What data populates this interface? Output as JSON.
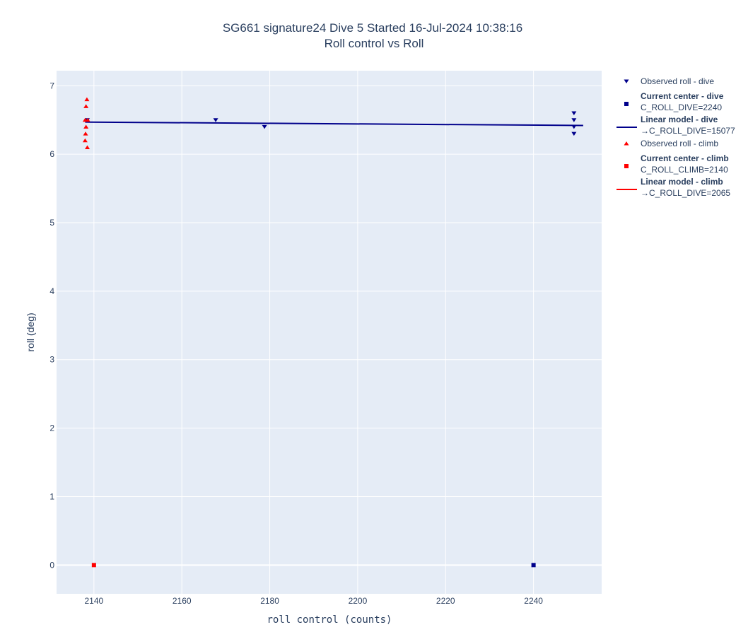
{
  "chart_data": {
    "type": "scatter",
    "title_line1": "SG661 signature24 Dive 5 Started 16-Jul-2024 10:38:16",
    "title_line2": "Roll control vs Roll",
    "xlabel": "roll control (counts)",
    "ylabel": "roll (deg)",
    "xlim": [
      2131.5,
      2255.5
    ],
    "ylim": [
      -0.42,
      7.22
    ],
    "x_ticks": [
      2140,
      2160,
      2180,
      2200,
      2220,
      2240
    ],
    "y_ticks": [
      0,
      1,
      2,
      3,
      4,
      5,
      6,
      7
    ],
    "grid": true,
    "legend_position": "right",
    "colors": {
      "dive": "#00008b",
      "climb": "#ff0000",
      "plot_bg": "#e5ecf6",
      "grid": "#ffffff",
      "text": "#2a3f5f"
    },
    "series": [
      {
        "name": "Observed roll - dive",
        "kind": "marker",
        "symbol": "triangle-down",
        "color": "#00008b",
        "points": [
          {
            "x": 2138.5,
            "y": 6.5
          },
          {
            "x": 2167.7,
            "y": 6.5
          },
          {
            "x": 2178.8,
            "y": 6.4
          },
          {
            "x": 2249.2,
            "y": 6.6
          },
          {
            "x": 2249.2,
            "y": 6.5
          },
          {
            "x": 2249.2,
            "y": 6.4
          },
          {
            "x": 2249.2,
            "y": 6.3
          }
        ]
      },
      {
        "name": "Current center - dive",
        "sublabel": "C_ROLL_DIVE=2240",
        "kind": "marker",
        "symbol": "square",
        "color": "#00008b",
        "points": [
          {
            "x": 2240,
            "y": 0
          }
        ]
      },
      {
        "name": "Linear model - dive",
        "sublabel": "→C_ROLL_DIVE=15077",
        "kind": "line",
        "color": "#00008b",
        "points": [
          {
            "x": 2138,
            "y": 6.47
          },
          {
            "x": 2251.3,
            "y": 6.42
          }
        ]
      },
      {
        "name": "Observed roll - climb",
        "kind": "marker",
        "symbol": "triangle-up",
        "color": "#ff0000",
        "points": [
          {
            "x": 2138.4,
            "y": 6.8
          },
          {
            "x": 2138.2,
            "y": 6.7
          },
          {
            "x": 2138.0,
            "y": 6.5
          },
          {
            "x": 2138.6,
            "y": 6.5
          },
          {
            "x": 2138.2,
            "y": 6.4
          },
          {
            "x": 2138.1,
            "y": 6.3
          },
          {
            "x": 2138.0,
            "y": 6.2
          },
          {
            "x": 2138.5,
            "y": 6.1
          }
        ]
      },
      {
        "name": "Current center - climb",
        "sublabel": "C_ROLL_CLIMB=2140",
        "kind": "marker",
        "symbol": "square",
        "color": "#ff0000",
        "points": [
          {
            "x": 2140,
            "y": 0
          }
        ]
      },
      {
        "name": "Linear model - climb",
        "sublabel": "→C_ROLL_DIVE=2065",
        "kind": "line",
        "color": "#ff0000",
        "points": []
      }
    ]
  }
}
